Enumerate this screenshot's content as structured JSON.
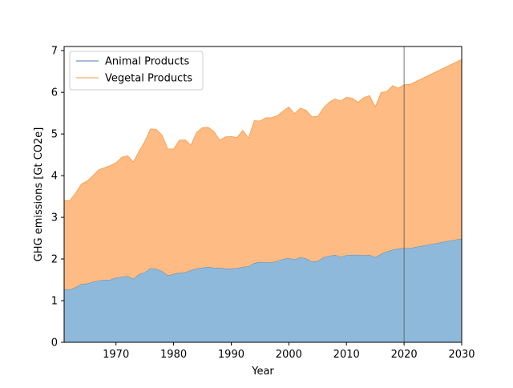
{
  "chart_data": {
    "type": "area",
    "stacked": true,
    "xlabel": "Year",
    "ylabel": "GHG emissions [Gt CO2e]",
    "xlim": [
      1961,
      2030
    ],
    "ylim": [
      0,
      7.1
    ],
    "xticks": [
      1970,
      1980,
      1990,
      2000,
      2010,
      2020,
      2030
    ],
    "yticks": [
      0,
      1,
      2,
      3,
      4,
      5,
      6,
      7
    ],
    "grid": false,
    "legend_position": "top-left",
    "vline_x": 2020,
    "x": [
      1961,
      1962,
      1963,
      1964,
      1965,
      1966,
      1967,
      1968,
      1969,
      1970,
      1971,
      1972,
      1973,
      1974,
      1975,
      1976,
      1977,
      1978,
      1979,
      1980,
      1981,
      1982,
      1983,
      1984,
      1985,
      1986,
      1987,
      1988,
      1989,
      1990,
      1991,
      1992,
      1993,
      1994,
      1995,
      1996,
      1997,
      1998,
      1999,
      2000,
      2001,
      2002,
      2003,
      2004,
      2005,
      2006,
      2007,
      2008,
      2009,
      2010,
      2011,
      2012,
      2013,
      2014,
      2015,
      2016,
      2017,
      2018,
      2019,
      2020,
      2021,
      2030
    ],
    "series": [
      {
        "name": "Animal Products",
        "fill": "#8fb9da",
        "line": "#4a7fad",
        "values": [
          1.27,
          1.27,
          1.32,
          1.4,
          1.41,
          1.45,
          1.48,
          1.5,
          1.5,
          1.55,
          1.57,
          1.59,
          1.52,
          1.63,
          1.68,
          1.78,
          1.76,
          1.71,
          1.6,
          1.64,
          1.67,
          1.68,
          1.73,
          1.77,
          1.79,
          1.81,
          1.79,
          1.79,
          1.77,
          1.77,
          1.78,
          1.81,
          1.82,
          1.9,
          1.93,
          1.92,
          1.92,
          1.95,
          2.0,
          2.02,
          1.99,
          2.04,
          2.01,
          1.94,
          1.95,
          2.04,
          2.07,
          2.1,
          2.05,
          2.09,
          2.1,
          2.1,
          2.09,
          2.1,
          2.04,
          2.12,
          2.18,
          2.22,
          2.25,
          2.26,
          2.26,
          2.49
        ]
      },
      {
        "name": "Vegetal Products",
        "fill": "#ffbb84",
        "line": "#f59a44",
        "values": [
          2.13,
          2.13,
          2.26,
          2.4,
          2.46,
          2.55,
          2.66,
          2.69,
          2.74,
          2.76,
          2.87,
          2.89,
          2.81,
          2.95,
          3.14,
          3.34,
          3.35,
          3.26,
          3.04,
          3.0,
          3.18,
          3.18,
          3.0,
          3.27,
          3.36,
          3.35,
          3.27,
          3.06,
          3.16,
          3.17,
          3.13,
          3.28,
          3.08,
          3.42,
          3.38,
          3.47,
          3.47,
          3.49,
          3.55,
          3.63,
          3.5,
          3.58,
          3.56,
          3.47,
          3.47,
          3.58,
          3.69,
          3.74,
          3.74,
          3.79,
          3.76,
          3.66,
          3.78,
          3.82,
          3.61,
          3.88,
          3.84,
          3.94,
          3.85,
          3.92,
          3.93,
          4.3
        ]
      }
    ]
  }
}
